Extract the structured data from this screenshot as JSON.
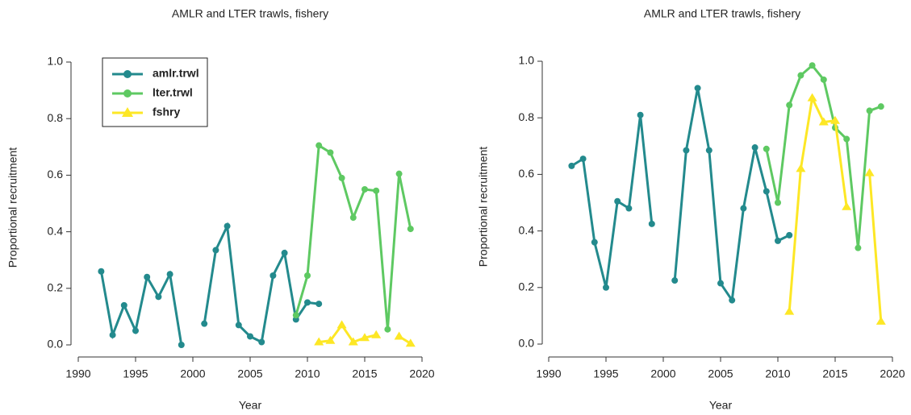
{
  "chart_data": [
    {
      "type": "line",
      "title": "AMLR and LTER trawls, fishery",
      "xlabel": "Year",
      "ylabel": "Proportional recruitment",
      "x": [
        1992,
        1993,
        1994,
        1995,
        1996,
        1997,
        1998,
        1999,
        2000,
        2001,
        2002,
        2003,
        2004,
        2005,
        2006,
        2007,
        2008,
        2009,
        2010,
        2011,
        2012,
        2013,
        2014,
        2015,
        2016,
        2017,
        2018,
        2019
      ],
      "series": [
        {
          "name": "amlr.trwl",
          "color": "#238a8d",
          "marker": "circle",
          "values": [
            0.26,
            0.035,
            0.14,
            0.05,
            0.24,
            0.17,
            0.25,
            0.0,
            null,
            0.075,
            0.335,
            0.42,
            0.07,
            0.03,
            0.01,
            0.245,
            0.325,
            0.09,
            0.15,
            0.145,
            null,
            null,
            null,
            null,
            null,
            null,
            null,
            null
          ]
        },
        {
          "name": "lter.trwl",
          "color": "#5ec962",
          "marker": "circle",
          "values": [
            null,
            null,
            null,
            null,
            null,
            null,
            null,
            null,
            null,
            null,
            null,
            null,
            null,
            null,
            null,
            null,
            null,
            0.105,
            0.245,
            0.705,
            0.68,
            0.59,
            0.45,
            0.55,
            0.545,
            0.055,
            0.605,
            0.41
          ]
        },
        {
          "name": "fshry",
          "color": "#fde725",
          "marker": "triangle",
          "values": [
            null,
            null,
            null,
            null,
            null,
            null,
            null,
            null,
            null,
            null,
            null,
            null,
            null,
            null,
            null,
            null,
            null,
            null,
            null,
            0.01,
            0.015,
            0.07,
            0.01,
            0.025,
            0.035,
            null,
            0.03,
            0.005
          ]
        }
      ],
      "xlim": [
        1990,
        2020
      ],
      "ylim": [
        0,
        1
      ],
      "xticks": [
        1990,
        1995,
        2000,
        2005,
        2010,
        2015,
        2020
      ],
      "yticks": [
        {
          "value": 0,
          "label": "0.0"
        },
        {
          "value": 0.2,
          "label": "0.2"
        },
        {
          "value": 0.4,
          "label": "0.4"
        },
        {
          "value": 0.6,
          "label": "0.6"
        },
        {
          "value": 0.8,
          "label": "0.8"
        },
        {
          "value": 1,
          "label": "1.0"
        }
      ],
      "legend": "top-left"
    },
    {
      "type": "line",
      "title": "AMLR and LTER trawls, fishery",
      "xlabel": "Year",
      "ylabel": "Proportional recruitment",
      "x": [
        1992,
        1993,
        1994,
        1995,
        1996,
        1997,
        1998,
        1999,
        2000,
        2001,
        2002,
        2003,
        2004,
        2005,
        2006,
        2007,
        2008,
        2009,
        2010,
        2011,
        2012,
        2013,
        2014,
        2015,
        2016,
        2017,
        2018,
        2019
      ],
      "series": [
        {
          "name": "amlr.trwl",
          "color": "#238a8d",
          "marker": "circle",
          "values": [
            0.63,
            0.655,
            0.36,
            0.2,
            0.505,
            0.48,
            0.81,
            0.425,
            null,
            0.225,
            0.685,
            0.905,
            0.685,
            0.215,
            0.155,
            0.48,
            0.695,
            0.54,
            0.365,
            0.385,
            null,
            null,
            null,
            null,
            null,
            null,
            null,
            null
          ]
        },
        {
          "name": "lter.trwl",
          "color": "#5ec962",
          "marker": "circle",
          "values": [
            null,
            null,
            null,
            null,
            null,
            null,
            null,
            null,
            null,
            null,
            null,
            null,
            null,
            null,
            null,
            null,
            null,
            0.69,
            0.5,
            0.845,
            0.95,
            0.985,
            0.935,
            0.765,
            0.725,
            0.34,
            0.825,
            0.84
          ]
        },
        {
          "name": "fshry",
          "color": "#fde725",
          "marker": "triangle",
          "values": [
            null,
            null,
            null,
            null,
            null,
            null,
            null,
            null,
            null,
            null,
            null,
            null,
            null,
            null,
            null,
            null,
            null,
            null,
            null,
            0.115,
            0.62,
            0.87,
            0.785,
            0.79,
            0.485,
            null,
            0.605,
            0.08
          ]
        }
      ],
      "xlim": [
        1990,
        2020
      ],
      "ylim": [
        0,
        1
      ],
      "xticks": [
        1990,
        1995,
        2000,
        2005,
        2010,
        2015,
        2020
      ],
      "yticks": [
        {
          "value": 0,
          "label": "0.0"
        },
        {
          "value": 0.2,
          "label": "0.2"
        },
        {
          "value": 0.4,
          "label": "0.4"
        },
        {
          "value": 0.6,
          "label": "0.6"
        },
        {
          "value": 0.8,
          "label": "0.8"
        },
        {
          "value": 1,
          "label": "1.0"
        }
      ]
    }
  ]
}
